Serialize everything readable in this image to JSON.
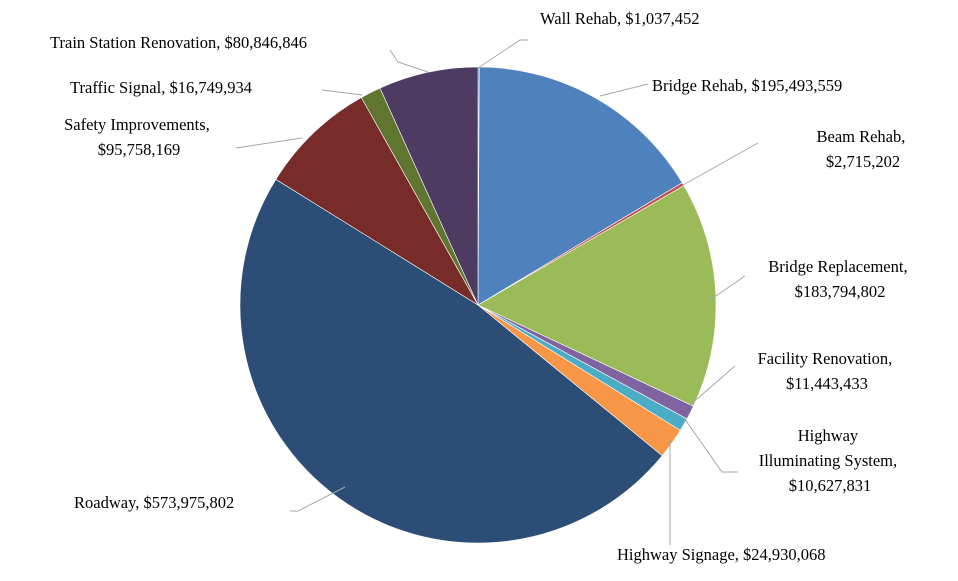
{
  "chart_data": {
    "type": "pie",
    "title": "",
    "legend": "none",
    "slices": [
      {
        "name": "Wall Rehab",
        "value": 1037452,
        "value_label": "$1,037,452",
        "color": "#4472c4"
      },
      {
        "name": "Bridge Rehab",
        "value": 195493559,
        "value_label": "$195,493,559",
        "color": "#4f81bd"
      },
      {
        "name": "Beam Rehab",
        "value": 2715202,
        "value_label": "$2,715,202",
        "color": "#c0504d"
      },
      {
        "name": "Bridge Replacement",
        "value": 183794802,
        "value_label": "$183,794,802",
        "color": "#9bbb59"
      },
      {
        "name": "Facility Renovation",
        "value": 11443433,
        "value_label": "$11,443,433",
        "color": "#8064a2"
      },
      {
        "name": "Highway Illuminating System",
        "value": 10627831,
        "value_label": "$10,627,831",
        "color": "#4bacc6"
      },
      {
        "name": "Highway Signage",
        "value": 24930068,
        "value_label": "$24,930,068",
        "color": "#f79646"
      },
      {
        "name": "Roadway",
        "value": 573975802,
        "value_label": "$573,975,802",
        "color": "#2c4d75"
      },
      {
        "name": "Safety Improvements",
        "value": 95758169,
        "value_label": "$95,758,169",
        "color": "#772c2a"
      },
      {
        "name": "Traffic Signal",
        "value": 16749934,
        "value_label": "$16,749,934",
        "color": "#5f7530"
      },
      {
        "name": "Train Station Renovation",
        "value": 80846846,
        "value_label": "$80,846,846",
        "color": "#4d3b62"
      }
    ]
  }
}
